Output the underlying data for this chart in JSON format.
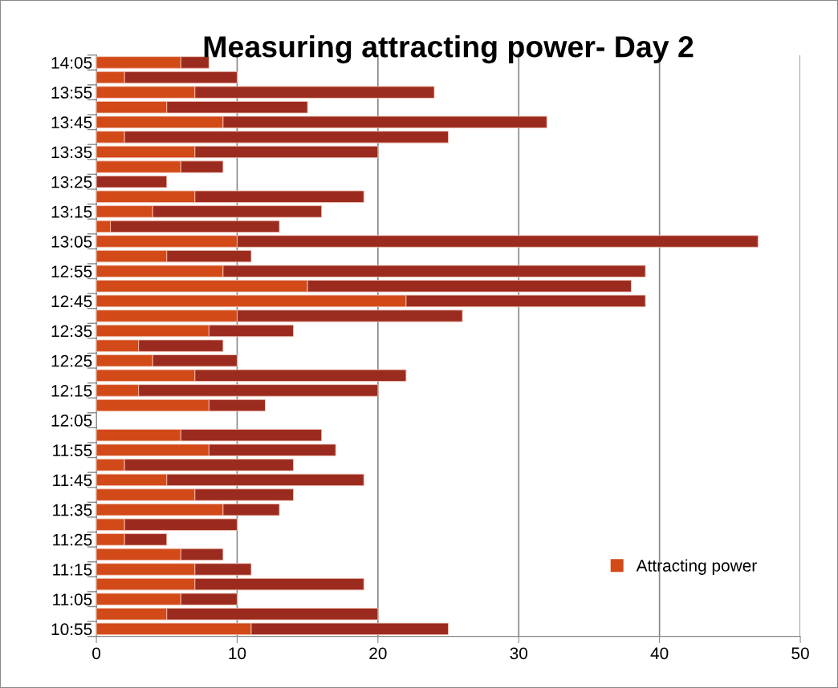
{
  "chart_data": {
    "type": "bar",
    "orientation": "horizontal",
    "stacked": true,
    "title": "Measuring attracting power- Day 2",
    "categories": [
      "14:05",
      null,
      "13:55",
      null,
      "13:45",
      null,
      "13:35",
      null,
      "13:25",
      null,
      "13:15",
      null,
      "13:05",
      null,
      "12:55",
      null,
      "12:45",
      null,
      "12:35",
      null,
      "12:25",
      null,
      "12:15",
      null,
      "12:05",
      null,
      "11:55",
      null,
      "11:45",
      null,
      "11:35",
      null,
      "11:25",
      null,
      "11:15",
      null,
      "11:05",
      null,
      "10:55"
    ],
    "series": [
      {
        "name": "Attracting power",
        "color": "#d24a18",
        "values": [
          6,
          2,
          7,
          5,
          9,
          2,
          7,
          6,
          0,
          7,
          4,
          1,
          10,
          5,
          9,
          15,
          22,
          10,
          8,
          3,
          4,
          7,
          3,
          8,
          null,
          6,
          8,
          2,
          5,
          7,
          9,
          2,
          2,
          6,
          7,
          7,
          6,
          5,
          11
        ]
      },
      {
        "color": "#9c2b1f",
        "values": [
          2,
          8,
          17,
          10,
          23,
          23,
          13,
          3,
          5,
          12,
          12,
          12,
          37,
          6,
          30,
          23,
          17,
          16,
          6,
          6,
          6,
          15,
          17,
          4,
          null,
          10,
          9,
          12,
          14,
          7,
          4,
          8,
          3,
          3,
          4,
          12,
          4,
          15,
          14
        ]
      }
    ],
    "xlim": [
      0,
      50
    ],
    "xticks": [
      0,
      10,
      20,
      30,
      40,
      50
    ],
    "grid": "x",
    "legend": "bottom right"
  }
}
